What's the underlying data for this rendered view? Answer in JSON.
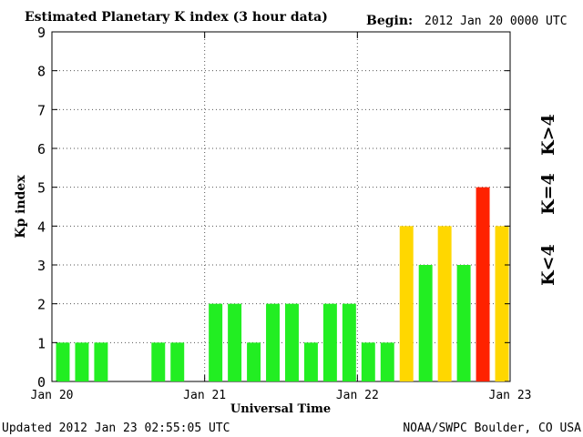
{
  "header": {
    "begin_label": "Begin:",
    "begin_value": "2012 Jan 20 0000 UTC"
  },
  "footer": {
    "updated": "Updated 2012 Jan 23 02:55:05 UTC",
    "credit": "NOAA/SWPC Boulder, CO USA"
  },
  "legend": {
    "below": "K<4",
    "equal": "K=4",
    "above": "K>4"
  },
  "colors": {
    "below": "#22ee22",
    "equal": "#ffd700",
    "above": "#ff2200",
    "axis": "#000000",
    "grid": "#555555"
  },
  "chart_data": {
    "type": "bar",
    "title": "Estimated Planetary K index (3 hour data)",
    "xlabel": "Universal Time",
    "ylabel": "Kp index",
    "ylim": [
      0,
      9
    ],
    "yticks": [
      0,
      1,
      2,
      3,
      4,
      5,
      6,
      7,
      8,
      9
    ],
    "xticks": [
      "Jan 20",
      "Jan 21",
      "Jan 22",
      "Jan 23"
    ],
    "grid": true,
    "x_start": "2012-01-20 00:00 UTC",
    "interval_hours": 3,
    "values": [
      1,
      1,
      1,
      null,
      null,
      1,
      1,
      null,
      2,
      2,
      1,
      2,
      2,
      1,
      2,
      2,
      1,
      1,
      4,
      3,
      4,
      3,
      5,
      4
    ]
  }
}
